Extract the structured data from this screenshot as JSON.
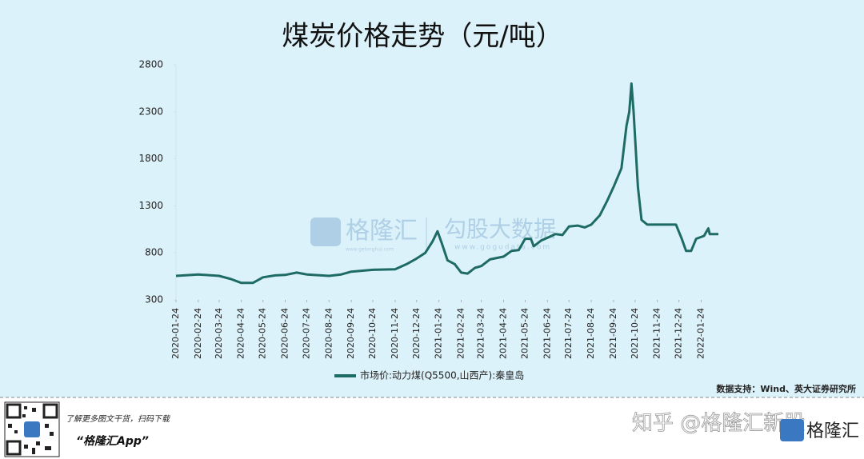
{
  "chart_data": {
    "type": "line",
    "title": "煤炭价格走势（元/吨）",
    "x": [
      "2020-01-24",
      "2020-02-24",
      "2020-03-24",
      "2020-04-10",
      "2020-04-24",
      "2020-05-10",
      "2020-05-24",
      "2020-06-10",
      "2020-06-24",
      "2020-07-10",
      "2020-07-24",
      "2020-08-24",
      "2020-09-10",
      "2020-09-24",
      "2020-10-24",
      "2020-11-24",
      "2020-12-10",
      "2020-12-24",
      "2021-01-05",
      "2021-01-15",
      "2021-01-22",
      "2021-01-28",
      "2021-02-05",
      "2021-02-15",
      "2021-02-24",
      "2021-03-05",
      "2021-03-15",
      "2021-03-24",
      "2021-04-05",
      "2021-04-24",
      "2021-05-05",
      "2021-05-15",
      "2021-05-24",
      "2021-06-01",
      "2021-06-05",
      "2021-06-15",
      "2021-06-24",
      "2021-07-05",
      "2021-07-15",
      "2021-07-24",
      "2021-08-05",
      "2021-08-15",
      "2021-08-24",
      "2021-09-05",
      "2021-09-15",
      "2021-09-24",
      "2021-10-05",
      "2021-10-12",
      "2021-10-16",
      "2021-10-19",
      "2021-10-22",
      "2021-10-28",
      "2021-11-02",
      "2021-11-10",
      "2021-11-24",
      "2021-12-10",
      "2021-12-20",
      "2021-12-28",
      "2022-01-03",
      "2022-01-10",
      "2022-01-17",
      "2022-01-28",
      "2022-02-03",
      "2022-02-05",
      "2022-02-17"
    ],
    "series": [
      {
        "name": "市场价:动力煤(Q5500,山西产):秦皇岛",
        "color": "#1d6b64",
        "values": [
          555,
          570,
          555,
          520,
          480,
          480,
          540,
          560,
          565,
          590,
          570,
          555,
          570,
          600,
          620,
          625,
          680,
          740,
          800,
          920,
          1030,
          900,
          720,
          680,
          590,
          580,
          640,
          660,
          730,
          760,
          820,
          830,
          950,
          950,
          870,
          930,
          960,
          1000,
          990,
          1080,
          1090,
          1070,
          1100,
          1200,
          1350,
          1500,
          1700,
          2150,
          2300,
          2600,
          2300,
          1500,
          1150,
          1100,
          1100,
          1100,
          1100,
          950,
          820,
          820,
          950,
          980,
          1060,
          1000,
          1000
        ]
      }
    ],
    "xlim": [
      "2020-01-24",
      "2022-02-17"
    ],
    "xticks": [
      "2020-01-24",
      "2020-02-24",
      "2020-03-24",
      "2020-04-24",
      "2020-05-24",
      "2020-06-24",
      "2020-07-24",
      "2020-08-24",
      "2020-09-24",
      "2020-10-24",
      "2020-11-24",
      "2020-12-24",
      "2021-01-24",
      "2021-02-24",
      "2021-03-24",
      "2021-04-24",
      "2021-05-24",
      "2021-06-24",
      "2021-07-24",
      "2021-08-24",
      "2021-09-24",
      "2021-10-24",
      "2021-11-24",
      "2021-12-24",
      "2022-01-24"
    ],
    "ylim": [
      300,
      2800
    ],
    "yticks": [
      300,
      800,
      1300,
      1800,
      2300,
      2800
    ],
    "source": "数据支持：Wind、英大证券研究所"
  },
  "watermarks": {
    "logo1": "格隆汇",
    "url1": "www.gelonghui.com",
    "logo2": "勾股大数据",
    "url2": "www.gogudata.com"
  },
  "footer": {
    "promo": "了解更多图文干货，扫码下载",
    "app": "“格隆汇App”",
    "zhihu": "知乎 @格隆汇新股",
    "corner": "格隆汇"
  }
}
